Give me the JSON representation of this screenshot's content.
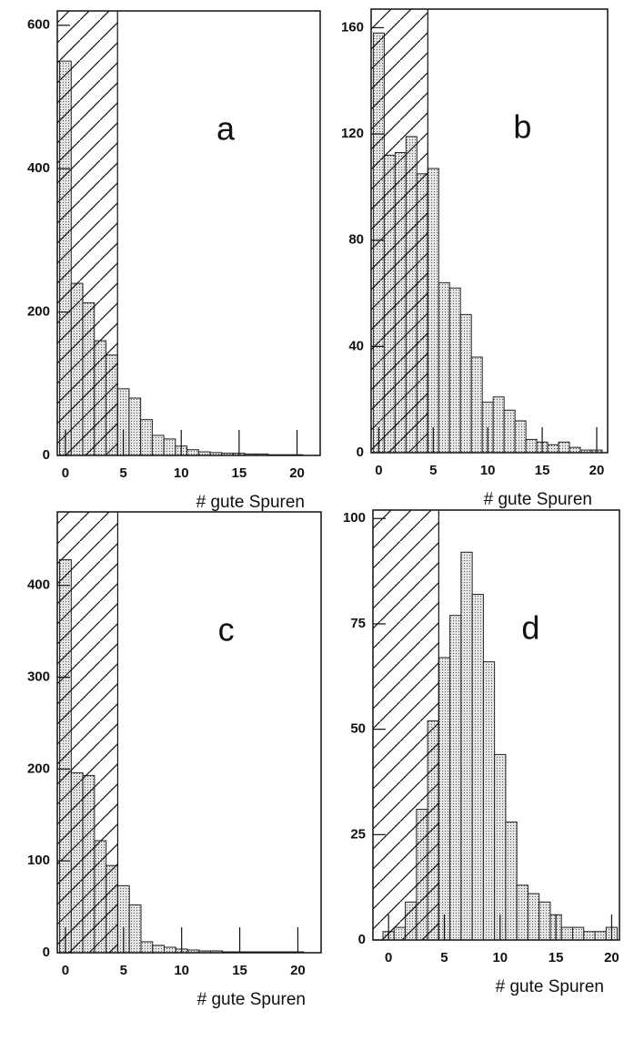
{
  "chart_data": [
    {
      "type": "histogram",
      "label": "a",
      "x_label": "# gute Spuren",
      "bins": [
        -0.5,
        0.5,
        1.5,
        2.5,
        3.5,
        4.5,
        5.5,
        6.5,
        7.5,
        8.5,
        9.5,
        10.5,
        11.5,
        12.5,
        13.5,
        14.5,
        15.5,
        16.5,
        17.5,
        18.5,
        19.5,
        20.5
      ],
      "values": [
        550,
        240,
        213,
        160,
        140,
        93,
        80,
        50,
        28,
        23,
        13,
        8,
        5,
        4,
        3,
        3,
        2,
        2,
        1,
        1,
        1
      ],
      "xlim": [
        -0.7,
        22
      ],
      "ylim": [
        0,
        620
      ],
      "xticks": [
        0,
        5,
        10,
        15,
        20
      ],
      "yticks": [
        0,
        200,
        400,
        600
      ],
      "hatch_xmax": 4.5
    },
    {
      "type": "histogram",
      "label": "b",
      "x_label": "# gute Spuren",
      "bins": [
        -0.5,
        0.5,
        1.5,
        2.5,
        3.5,
        4.5,
        5.5,
        6.5,
        7.5,
        8.5,
        9.5,
        10.5,
        11.5,
        12.5,
        13.5,
        14.5,
        15.5,
        16.5,
        17.5,
        18.5,
        19.5,
        20.5
      ],
      "values": [
        158,
        112,
        113,
        119,
        105,
        107,
        64,
        62,
        52,
        36,
        19,
        21,
        16,
        12,
        5,
        4,
        3,
        4,
        2,
        1,
        1
      ],
      "xlim": [
        -0.7,
        21
      ],
      "ylim": [
        0,
        167
      ],
      "xticks": [
        0,
        5,
        10,
        15,
        20
      ],
      "yticks": [
        0,
        40,
        80,
        120,
        160
      ],
      "hatch_xmax": 4.5
    },
    {
      "type": "histogram",
      "label": "c",
      "x_label": "# gute Spuren",
      "bins": [
        -0.5,
        0.5,
        1.5,
        2.5,
        3.5,
        4.5,
        5.5,
        6.5,
        7.5,
        8.5,
        9.5,
        10.5,
        11.5,
        12.5,
        13.5,
        14.5,
        15.5,
        16.5,
        17.5,
        18.5,
        19.5,
        20.5
      ],
      "values": [
        428,
        196,
        193,
        122,
        95,
        73,
        52,
        12,
        8,
        6,
        4,
        3,
        2,
        2,
        1,
        1,
        1,
        1,
        1,
        1,
        1
      ],
      "xlim": [
        -0.7,
        22
      ],
      "ylim": [
        0,
        480
      ],
      "xticks": [
        0,
        5,
        10,
        15,
        20
      ],
      "yticks": [
        0,
        100,
        200,
        300,
        400
      ],
      "hatch_xmax": 4.5
    },
    {
      "type": "histogram",
      "label": "d",
      "x_label": "# gute Spuren",
      "bins": [
        -0.5,
        0.5,
        1.5,
        2.5,
        3.5,
        4.5,
        5.5,
        6.5,
        7.5,
        8.5,
        9.5,
        10.5,
        11.5,
        12.5,
        13.5,
        14.5,
        15.5,
        16.5,
        17.5,
        18.5,
        19.5,
        20.5
      ],
      "values": [
        2,
        3,
        9,
        31,
        52,
        67,
        77,
        92,
        82,
        66,
        44,
        28,
        13,
        11,
        9,
        6,
        3,
        3,
        2,
        2,
        3
      ],
      "xlim": [
        -1.4,
        20.7
      ],
      "ylim": [
        0,
        102
      ],
      "xticks": [
        0,
        5,
        10,
        15,
        20
      ],
      "yticks": [
        0,
        25,
        50,
        75,
        100
      ],
      "hatch_xmax": 4.5
    }
  ]
}
